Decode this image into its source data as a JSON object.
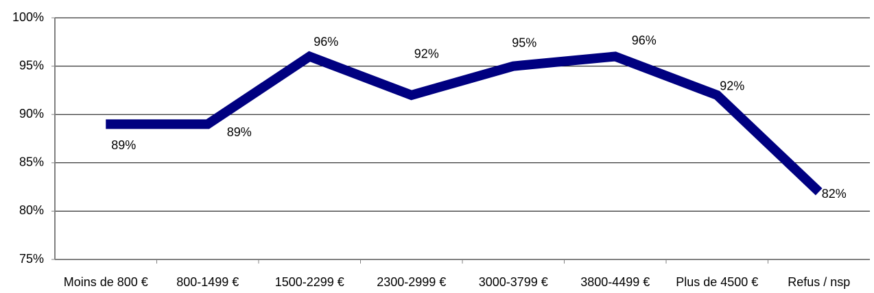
{
  "chart_data": {
    "type": "line",
    "categories": [
      "Moins de 800 €",
      "800-1499 €",
      "1500-2299 €",
      "2300-2999 €",
      "3000-3799 €",
      "3800-4499 €",
      "Plus de 4500 €",
      "Refus / nsp"
    ],
    "series": [
      {
        "color": "#000080",
        "values": [
          89,
          89,
          96,
          92,
          95,
          96,
          92,
          82
        ],
        "value_labels": [
          "89%",
          "89%",
          "96%",
          "92%",
          "95%",
          "96%",
          "92%",
          "82%"
        ]
      }
    ],
    "ylim": [
      75,
      100
    ],
    "yticks": [
      {
        "value": 75,
        "label": "75%"
      },
      {
        "value": 80,
        "label": "80%"
      },
      {
        "value": 85,
        "label": "85%"
      },
      {
        "value": 90,
        "label": "90%"
      },
      {
        "value": 95,
        "label": "95%"
      },
      {
        "value": 100,
        "label": "100%"
      }
    ],
    "grid": true
  }
}
